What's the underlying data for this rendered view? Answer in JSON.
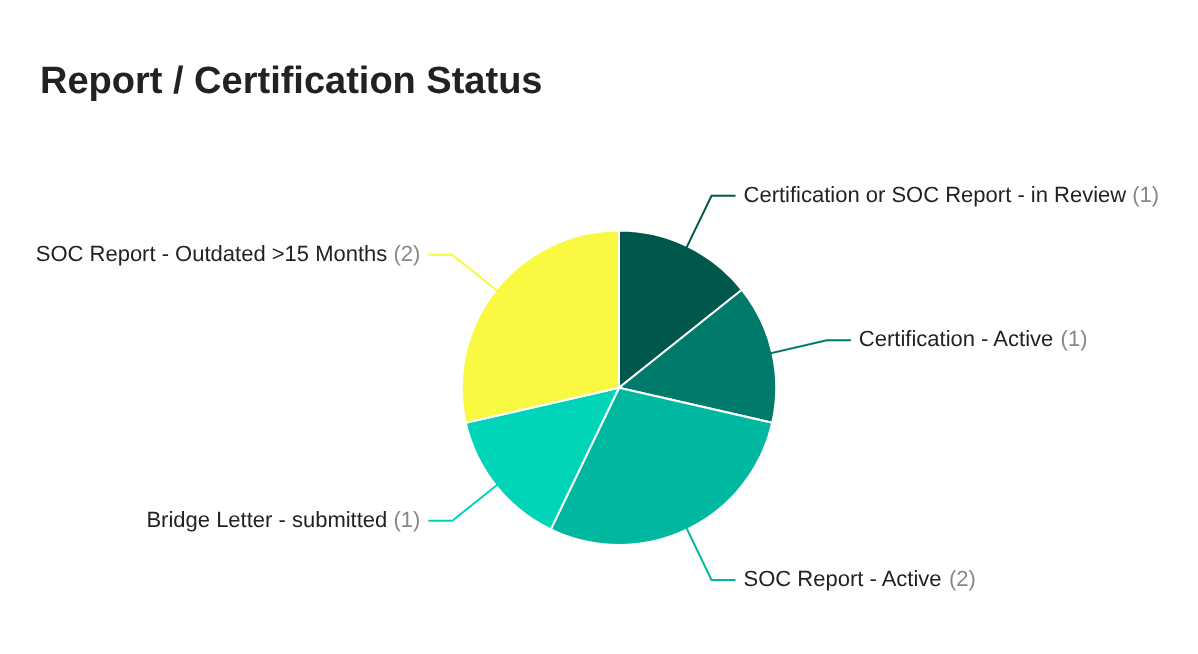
{
  "chart_data": {
    "type": "pie",
    "title": "Report / Certification Status",
    "categories": [
      "Certification or SOC Report - in Review",
      "Certification - Active",
      "SOC Report - Active",
      "Bridge Letter - submitted",
      "SOC Report - Outdated >15 Months"
    ],
    "values": [
      1,
      1,
      2,
      1,
      2
    ],
    "colors": [
      "#00574b",
      "#007a6a",
      "#00b8a0",
      "#00d4b8",
      "#f8f940"
    ],
    "value_labels": [
      "(1)",
      "(1)",
      "(2)",
      "(1)",
      "(2)"
    ],
    "legend": false
  }
}
